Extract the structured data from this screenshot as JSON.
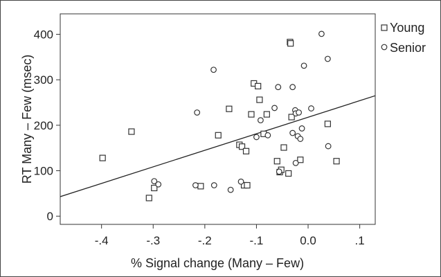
{
  "chart_data": {
    "type": "scatter",
    "xlabel": "% Signal change (Many – Few)",
    "ylabel": "RT Many – Few (msec)",
    "xlim": [
      -0.48,
      0.13
    ],
    "ylim": [
      -18,
      445
    ],
    "x_ticks": [
      {
        "value": -0.4,
        "label": "-.4"
      },
      {
        "value": -0.3,
        "label": "-.3"
      },
      {
        "value": -0.2,
        "label": "-.2"
      },
      {
        "value": -0.1,
        "label": "-.1"
      },
      {
        "value": 0.0,
        "label": "0.0"
      },
      {
        "value": 0.1,
        "label": ".1"
      }
    ],
    "y_ticks": [
      {
        "value": 0,
        "label": "0"
      },
      {
        "value": 100,
        "label": "100"
      },
      {
        "value": 200,
        "label": "200"
      },
      {
        "value": 300,
        "label": "300"
      },
      {
        "value": 400,
        "label": "400"
      }
    ],
    "legend_position": "right, outside plot",
    "grid": false,
    "series": [
      {
        "name": "Young",
        "marker": "square",
        "color": "#333333",
        "points": [
          [
            -0.398,
            128
          ],
          [
            -0.342,
            186
          ],
          [
            -0.308,
            40
          ],
          [
            -0.298,
            62
          ],
          [
            -0.208,
            66
          ],
          [
            -0.174,
            178
          ],
          [
            -0.153,
            236
          ],
          [
            -0.133,
            157
          ],
          [
            -0.128,
            153
          ],
          [
            -0.124,
            68
          ],
          [
            -0.12,
            143
          ],
          [
            -0.118,
            68
          ],
          [
            -0.11,
            224
          ],
          [
            -0.105,
            292
          ],
          [
            -0.097,
            286
          ],
          [
            -0.094,
            256
          ],
          [
            -0.086,
            181
          ],
          [
            -0.08,
            224
          ],
          [
            -0.06,
            121
          ],
          [
            -0.055,
            97
          ],
          [
            -0.052,
            102
          ],
          [
            -0.047,
            151
          ],
          [
            -0.038,
            94
          ],
          [
            -0.035,
            383
          ],
          [
            -0.034,
            380
          ],
          [
            -0.032,
            218
          ],
          [
            -0.015,
            124
          ],
          [
            0.038,
            203
          ],
          [
            0.055,
            121
          ]
        ]
      },
      {
        "name": "Senior",
        "marker": "circle",
        "color": "#333333",
        "points": [
          [
            -0.298,
            77
          ],
          [
            -0.29,
            70
          ],
          [
            -0.218,
            68
          ],
          [
            -0.215,
            228
          ],
          [
            -0.183,
            322
          ],
          [
            -0.182,
            68
          ],
          [
            -0.15,
            58
          ],
          [
            -0.13,
            76
          ],
          [
            -0.1,
            174
          ],
          [
            -0.092,
            211
          ],
          [
            -0.078,
            178
          ],
          [
            -0.065,
            238
          ],
          [
            -0.058,
            284
          ],
          [
            -0.056,
            98
          ],
          [
            -0.03,
            183
          ],
          [
            -0.03,
            284
          ],
          [
            -0.025,
            233
          ],
          [
            -0.024,
            226
          ],
          [
            -0.024,
            117
          ],
          [
            -0.02,
            176
          ],
          [
            -0.018,
            228
          ],
          [
            -0.015,
            170
          ],
          [
            -0.012,
            193
          ],
          [
            -0.008,
            331
          ],
          [
            0.006,
            237
          ],
          [
            0.026,
            401
          ],
          [
            0.038,
            346
          ],
          [
            0.039,
            154
          ]
        ]
      }
    ],
    "regression_line": {
      "x": [
        -0.48,
        0.13
      ],
      "y": [
        43,
        265
      ]
    }
  }
}
